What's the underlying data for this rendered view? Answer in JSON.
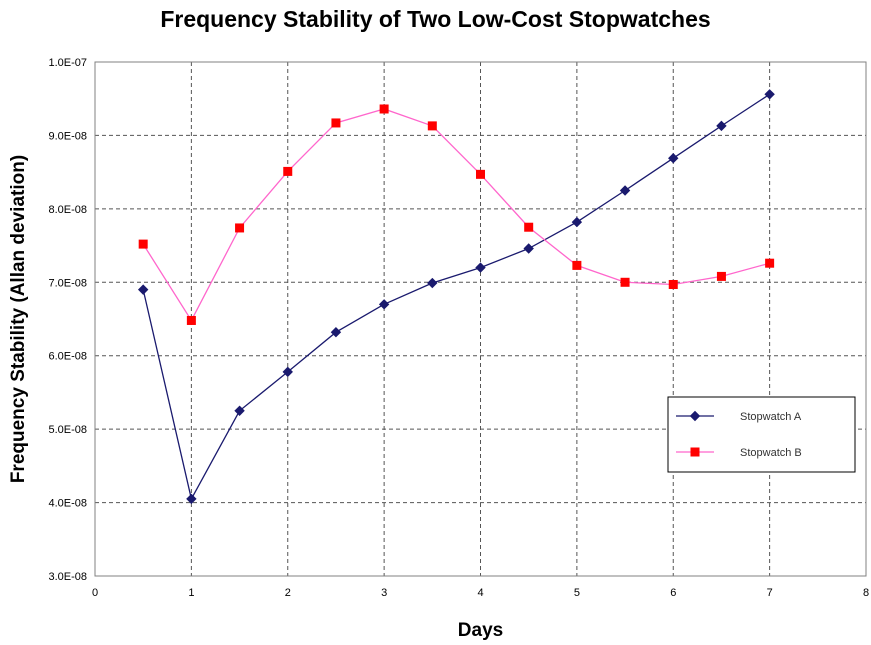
{
  "chart_data": {
    "type": "line",
    "title": "Frequency Stability of Two Low-Cost Stopwatches",
    "xlabel": "Days",
    "ylabel": "Frequency Stability (Allan deviation)",
    "xlim": [
      0,
      8
    ],
    "ylim": [
      3e-08,
      1e-07
    ],
    "x_ticks": [
      "0",
      "1",
      "2",
      "3",
      "4",
      "5",
      "6",
      "7",
      "8"
    ],
    "y_ticks": [
      "3.0E-08",
      "4.0E-08",
      "5.0E-08",
      "6.0E-08",
      "7.0E-08",
      "8.0E-08",
      "9.0E-08",
      "1.0E-07"
    ],
    "grid": true,
    "legend_position": "right",
    "series": [
      {
        "name": "Stopwatch A",
        "color": "#1a1a6e",
        "marker": "diamond",
        "x": [
          0.5,
          1,
          1.5,
          2,
          2.5,
          3,
          3.5,
          4,
          4.5,
          5,
          5.5,
          6,
          6.5,
          7
        ],
        "y": [
          6.9e-08,
          4.05e-08,
          5.25e-08,
          5.78e-08,
          6.32e-08,
          6.7e-08,
          6.99e-08,
          7.2e-08,
          7.46e-08,
          7.82e-08,
          8.25e-08,
          8.69e-08,
          9.13e-08,
          9.56e-08
        ]
      },
      {
        "name": "Stopwatch B",
        "color": "#ff0000",
        "line_color": "#ff66cc",
        "marker": "square",
        "x": [
          0.5,
          1,
          1.5,
          2,
          2.5,
          3,
          3.5,
          4,
          4.5,
          5,
          5.5,
          6,
          6.5,
          7
        ],
        "y": [
          7.52e-08,
          6.48e-08,
          7.74e-08,
          8.51e-08,
          9.17e-08,
          9.36e-08,
          9.13e-08,
          8.47e-08,
          7.75e-08,
          7.23e-08,
          7e-08,
          6.97e-08,
          7.08e-08,
          7.26e-08
        ]
      }
    ]
  }
}
